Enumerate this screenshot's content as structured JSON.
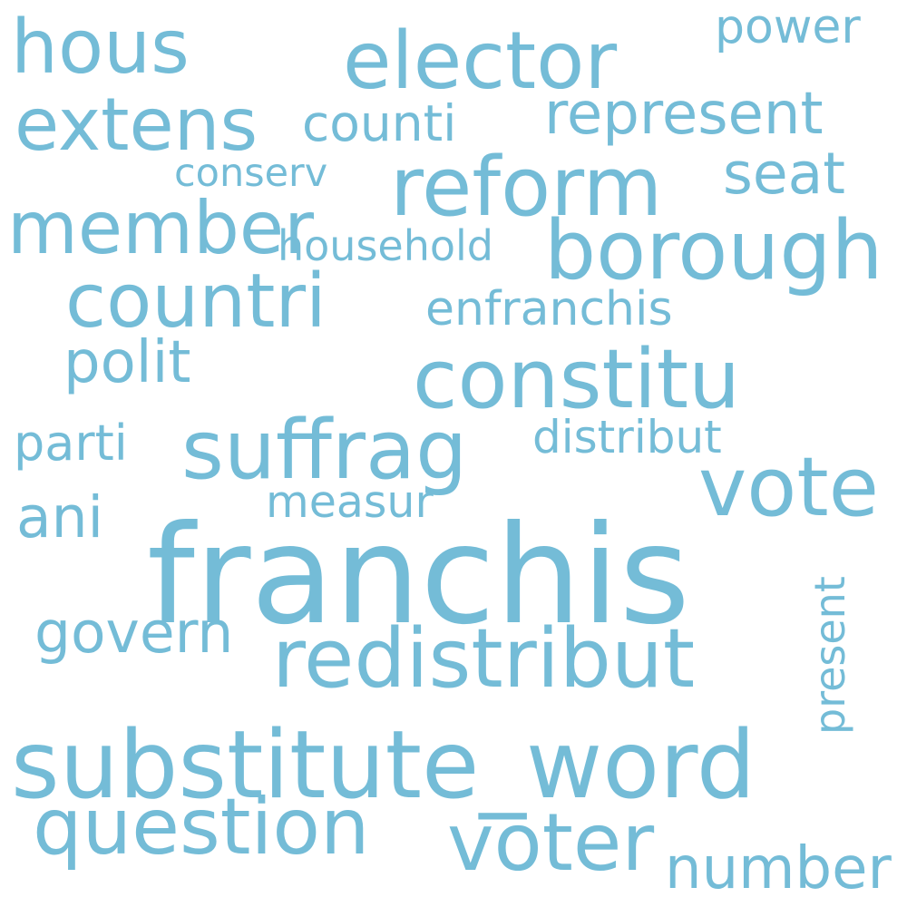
{
  "cloud": {
    "color": "#74bcd7",
    "background": "#ffffff",
    "words": [
      "franchis",
      "substitute_word",
      "suffrag",
      "constitu",
      "redistribut",
      "reform",
      "borough",
      "countri",
      "elector",
      "vote",
      "voter",
      "question",
      "member",
      "extens",
      "hous",
      "represent",
      "number",
      "polit",
      "govern",
      "seat",
      "enfranchis",
      "counti",
      "household",
      "distribut",
      "measur",
      "parti",
      "ani",
      "power",
      "conserv",
      "present"
    ]
  }
}
